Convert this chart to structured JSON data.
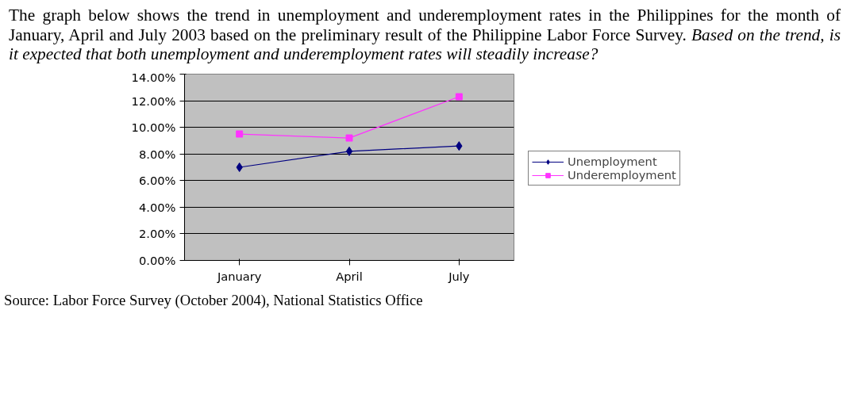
{
  "chart_data": {
    "type": "line",
    "title": "The graph below shows the trend in unemployment  and underemployment rates  in the Philippines for the month of January, April and July   2003 based on the preliminary result of the Philippine Labor Force Survey.",
    "subtitle": "Based on the trend, is it expected that both unemployment and underemployment rates will steadily increase?",
    "categories": [
      "January",
      "April",
      "July"
    ],
    "series": [
      {
        "name": "Unemployment",
        "color": "#000080",
        "marker": "diamond",
        "values": [
          7.0,
          8.2,
          8.6
        ]
      },
      {
        "name": "Underemployment",
        "color": "#ff33ff",
        "marker": "square",
        "values": [
          9.5,
          9.2,
          12.3
        ]
      }
    ],
    "ylim": [
      0,
      14
    ],
    "yticks": [
      {
        "value": 0,
        "label": "0.00%"
      },
      {
        "value": 2,
        "label": "2.00%"
      },
      {
        "value": 4,
        "label": "4.00%"
      },
      {
        "value": 6,
        "label": "6.00%"
      },
      {
        "value": 8,
        "label": "8.00%"
      },
      {
        "value": 10,
        "label": "10.00%"
      },
      {
        "value": 12,
        "label": "12.00%"
      },
      {
        "value": 14,
        "label": "14.00%"
      }
    ],
    "grid": "y",
    "legend": "right",
    "annotations": [
      "Source: Labor Force Survey (October 2004), National Statistics Office"
    ]
  }
}
